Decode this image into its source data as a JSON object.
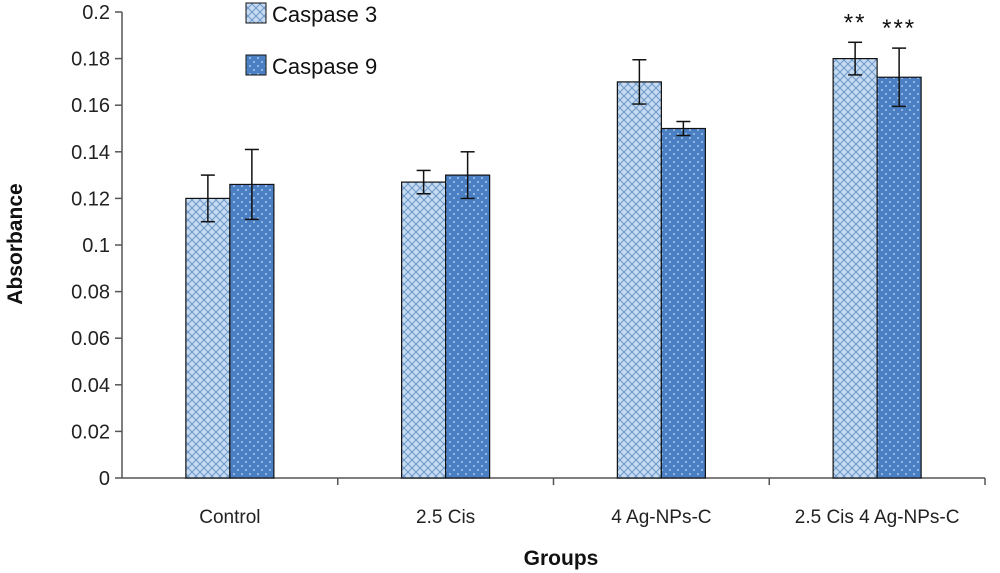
{
  "chart_data": {
    "type": "bar",
    "title": "",
    "xlabel": "Groups",
    "ylabel": "Absorbance",
    "ylim": [
      0,
      0.2
    ],
    "ytick_step": 0.02,
    "yticks": [
      "0",
      "0.02",
      "0.04",
      "0.06",
      "0.08",
      "0.1",
      "0.12",
      "0.14",
      "0.16",
      "0.18",
      "0.2"
    ],
    "grid": false,
    "legend_position": "top-left",
    "categories": [
      "Control",
      "2.5 Cis",
      "4 Ag-NPs-C",
      "2.5 Cis 4 Ag-NPs-C"
    ],
    "series": [
      {
        "name": "Caspase 3",
        "values": [
          0.12,
          0.127,
          0.17,
          0.18
        ],
        "errors": [
          0.01,
          0.005,
          0.0095,
          0.007
        ],
        "color": "#c5dbf1",
        "pattern_color": "#6f97c8",
        "annotations": [
          "",
          "",
          "",
          "**"
        ]
      },
      {
        "name": "Caspase 9",
        "values": [
          0.126,
          0.13,
          0.15,
          0.172
        ],
        "errors": [
          0.015,
          0.01,
          0.003,
          0.0125
        ],
        "color": "#4a7fc4",
        "pattern_color": "#a9c6ea",
        "annotations": [
          "",
          "",
          "",
          "***"
        ]
      }
    ]
  }
}
